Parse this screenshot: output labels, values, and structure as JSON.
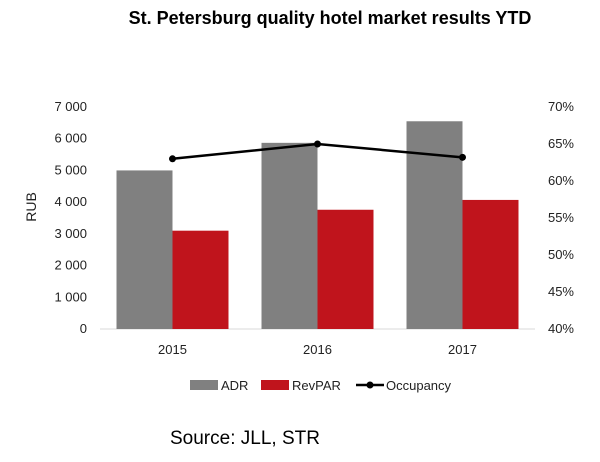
{
  "chart_data": {
    "type": "bar",
    "title": "St. Petersburg quality hotel market results YTD",
    "ylabel": "RUB",
    "categories": [
      "2015",
      "2016",
      "2017"
    ],
    "ylim": [
      0,
      7000
    ],
    "y_ticks": [
      "0",
      "1 000",
      "2 000",
      "3 000",
      "4 000",
      "5 000",
      "6 000",
      "7 000"
    ],
    "y2lim": [
      40,
      70
    ],
    "y2_ticks": [
      "40%",
      "45%",
      "50%",
      "55%",
      "60%",
      "65%",
      "70%"
    ],
    "series": [
      {
        "name": "ADR",
        "type": "bar",
        "axis": "left",
        "color": "#808080",
        "values": [
          5000,
          5870,
          6550
        ]
      },
      {
        "name": "RevPAR",
        "type": "bar",
        "axis": "left",
        "color": "#C0141C",
        "values": [
          3100,
          3760,
          4070
        ]
      },
      {
        "name": "Occupancy",
        "type": "line",
        "axis": "right",
        "color": "#000000",
        "values": [
          63.0,
          65.0,
          63.2
        ]
      }
    ],
    "legend_position": "bottom"
  },
  "source": "Source: JLL, STR"
}
